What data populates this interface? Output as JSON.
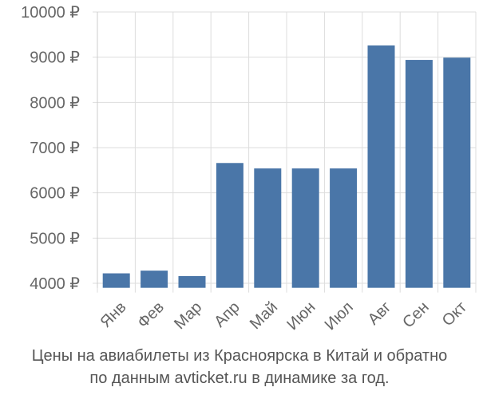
{
  "chart_data": {
    "type": "bar",
    "categories": [
      "Янв",
      "Фев",
      "Мар",
      "Апр",
      "Май",
      "Июн",
      "Июл",
      "Авг",
      "Сен",
      "Окт"
    ],
    "values": [
      4220,
      4280,
      4160,
      6660,
      6540,
      6540,
      6540,
      9260,
      8940,
      8990
    ],
    "ylim": [
      3900,
      10000
    ],
    "yticks": [
      4000,
      5000,
      6000,
      7000,
      8000,
      9000,
      10000
    ],
    "ytick_labels": [
      "4000 ₽",
      "5000 ₽",
      "6000 ₽",
      "7000 ₽",
      "8000 ₽",
      "9000 ₽",
      "10000 ₽"
    ],
    "grid": true,
    "bar_color": "#4a76a8",
    "grid_color": "#dddddd",
    "title": ""
  },
  "caption": {
    "line1": "Цены на авиабилеты из Красноярска в Китай и обратно",
    "line2": "по данным avticket.ru в динамике за год."
  }
}
